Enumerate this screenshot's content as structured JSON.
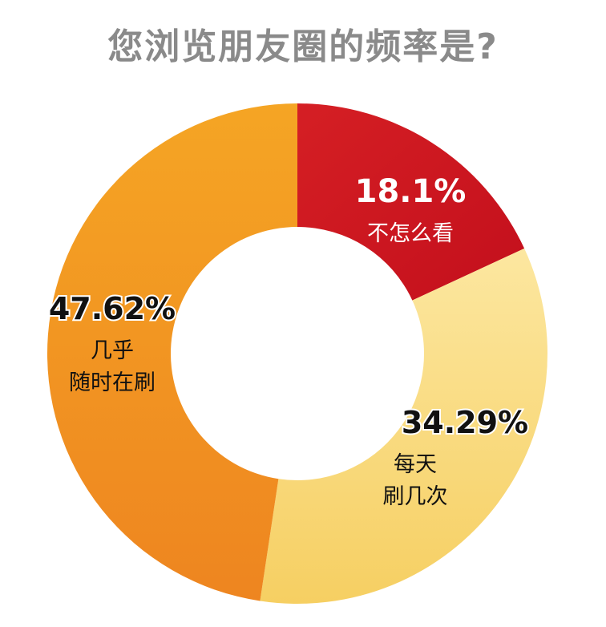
{
  "chart_data": {
    "type": "pie",
    "title": "您浏览朋友圈的频率是?",
    "slices": [
      {
        "label_lines": [
          "不怎么看"
        ],
        "percent_label": "18.1%",
        "value": 18.1,
        "color": "#d51f24",
        "color2": "#c30f1c",
        "text_color": "#ffffff"
      },
      {
        "label_lines": [
          "每天",
          "刷几次"
        ],
        "percent_label": "34.29%",
        "value": 34.29,
        "color": "#fce7a0",
        "color2": "#f6cf62",
        "text_color": "#111111"
      },
      {
        "label_lines": [
          "几乎",
          "随时在刷"
        ],
        "percent_label": "47.62%",
        "value": 47.62,
        "color": "#f5a524",
        "color2": "#ee8520",
        "text_color": "#111111"
      }
    ],
    "donut": true,
    "start_angle": "12 o'clock",
    "direction": "clockwise",
    "legend": "none"
  }
}
